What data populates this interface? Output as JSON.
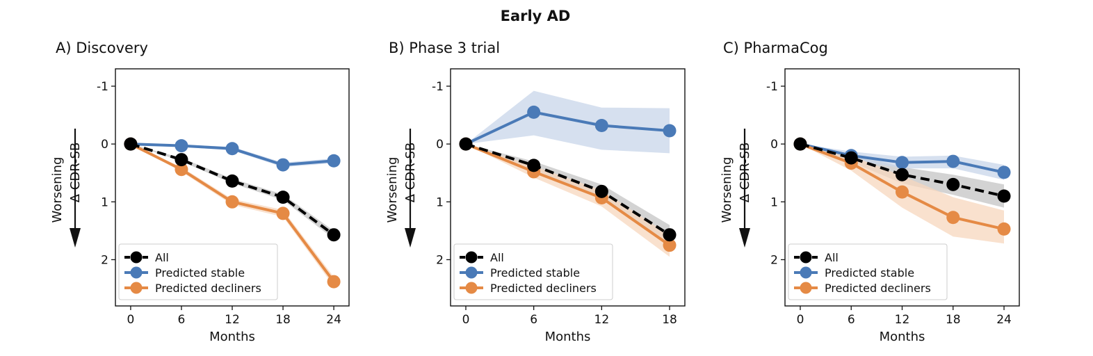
{
  "figure": {
    "title": "Early AD"
  },
  "colors": {
    "all": "#000000",
    "stable": "#4a7ab7",
    "decliners": "#e58a45",
    "stable_band": "#c8d6ea",
    "decliners_band": "#f7d7bd",
    "all_band": "#c4c4c4"
  },
  "legend": {
    "labels": [
      "All",
      "Predicted stable",
      "Predicted decliners"
    ],
    "placement": "lower-left"
  },
  "chart_data": [
    {
      "type": "line",
      "title": "A) Discovery",
      "xlabel": "Months",
      "ylabel": "Δ CDR-SB",
      "arrow_label": "Worsening",
      "x": [
        0,
        6,
        12,
        18,
        24
      ],
      "xticks": [
        "0",
        "6",
        "12",
        "18",
        "24"
      ],
      "yticks": [
        "-1",
        "0",
        "1",
        "2"
      ],
      "ylim": [
        -1.3,
        2.8
      ],
      "y_inverted": true,
      "series": [
        {
          "name": "All",
          "values": [
            0,
            0.27,
            0.64,
            0.92,
            1.57
          ],
          "style": "dashed",
          "band_lo": [
            0,
            0.24,
            0.6,
            0.87,
            1.5
          ],
          "band_hi": [
            0,
            0.3,
            0.68,
            0.97,
            1.64
          ]
        },
        {
          "name": "Predicted stable",
          "values": [
            0,
            0.03,
            0.08,
            0.36,
            0.29
          ],
          "style": "solid",
          "band_lo": [
            0,
            0.01,
            0.05,
            0.32,
            0.25
          ],
          "band_hi": [
            0,
            0.05,
            0.11,
            0.4,
            0.33
          ]
        },
        {
          "name": "Predicted decliners",
          "values": [
            0,
            0.44,
            1.0,
            1.2,
            2.38
          ],
          "style": "solid",
          "band_lo": [
            0,
            0.4,
            0.95,
            1.14,
            2.3
          ],
          "band_hi": [
            0,
            0.48,
            1.05,
            1.26,
            2.46
          ]
        }
      ]
    },
    {
      "type": "line",
      "title": "B) Phase 3 trial",
      "xlabel": "Months",
      "ylabel": "Δ CDR-SB",
      "arrow_label": "Worsening",
      "x": [
        0,
        6,
        12,
        18
      ],
      "xticks": [
        "0",
        "6",
        "12",
        "18"
      ],
      "yticks": [
        "-1",
        "0",
        "1",
        "2"
      ],
      "ylim": [
        -1.3,
        2.8
      ],
      "y_inverted": true,
      "series": [
        {
          "name": "All",
          "values": [
            0,
            0.37,
            0.82,
            1.57
          ],
          "style": "dashed",
          "band_lo": [
            0,
            0.3,
            0.7,
            1.4
          ],
          "band_hi": [
            0,
            0.44,
            0.96,
            1.74
          ]
        },
        {
          "name": "Predicted stable",
          "values": [
            0,
            -0.55,
            -0.32,
            -0.23
          ],
          "style": "solid",
          "band_lo": [
            0,
            -0.92,
            -0.63,
            -0.62
          ],
          "band_hi": [
            0,
            -0.15,
            0.1,
            0.16
          ]
        },
        {
          "name": "Predicted decliners",
          "values": [
            0,
            0.48,
            0.93,
            1.75
          ],
          "style": "solid",
          "band_lo": [
            0,
            0.38,
            0.8,
            1.58
          ],
          "band_hi": [
            0,
            0.58,
            1.08,
            1.95
          ]
        }
      ]
    },
    {
      "type": "line",
      "title": "C) PharmaCog",
      "xlabel": "Months",
      "ylabel": "Δ CDR-SB",
      "arrow_label": "Worsening",
      "x": [
        0,
        6,
        12,
        18,
        24
      ],
      "xticks": [
        "0",
        "6",
        "12",
        "18",
        "24"
      ],
      "yticks": [
        "-1",
        "0",
        "1",
        "2"
      ],
      "ylim": [
        -1.3,
        2.8
      ],
      "y_inverted": true,
      "series": [
        {
          "name": "All",
          "values": [
            0,
            0.24,
            0.53,
            0.7,
            0.9
          ],
          "style": "dashed",
          "band_lo": [
            0,
            0.17,
            0.4,
            0.53,
            0.7
          ],
          "band_hi": [
            0,
            0.31,
            0.68,
            0.88,
            1.1
          ]
        },
        {
          "name": "Predicted stable",
          "values": [
            0,
            0.2,
            0.32,
            0.3,
            0.49
          ],
          "style": "solid",
          "band_lo": [
            0,
            0.13,
            0.22,
            0.2,
            0.36
          ],
          "band_hi": [
            0,
            0.27,
            0.42,
            0.42,
            0.62
          ]
        },
        {
          "name": "Predicted decliners",
          "values": [
            0,
            0.33,
            0.83,
            1.27,
            1.47
          ],
          "style": "solid",
          "band_lo": [
            0,
            0.2,
            0.55,
            0.92,
            1.15
          ],
          "band_hi": [
            0,
            0.46,
            1.1,
            1.6,
            1.72
          ]
        }
      ]
    }
  ]
}
